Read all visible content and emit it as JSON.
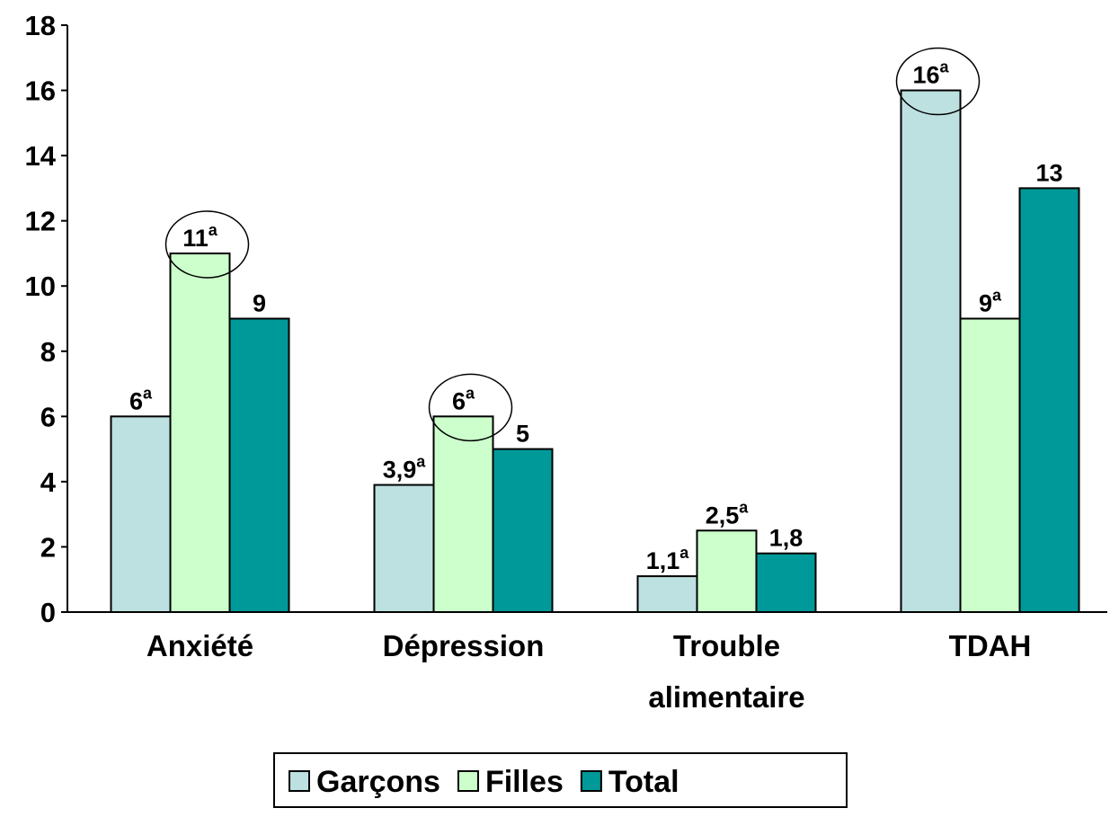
{
  "chart_data": {
    "type": "bar",
    "categories": [
      "Anxiété",
      "Dépression",
      "Trouble alimentaire",
      "TDAH"
    ],
    "series": [
      {
        "name": "Garçons",
        "color": "#bde0e0",
        "values": [
          6,
          3.9,
          1.1,
          16
        ],
        "value_labels": [
          "6",
          "3,9",
          "1,1",
          "16"
        ],
        "notes": [
          "a",
          "a",
          "a",
          "a"
        ],
        "circled": [
          false,
          false,
          false,
          true
        ]
      },
      {
        "name": "Filles",
        "color": "#ccffcc",
        "values": [
          11,
          6,
          2.5,
          9
        ],
        "value_labels": [
          "11",
          "6",
          "2,5",
          "9"
        ],
        "notes": [
          "a",
          "a",
          "a",
          "a"
        ],
        "circled": [
          true,
          true,
          false,
          false
        ]
      },
      {
        "name": "Total",
        "color": "#009999",
        "values": [
          9,
          5,
          1.8,
          13
        ],
        "value_labels": [
          "9",
          "5",
          "1,8",
          "13"
        ],
        "notes": [
          null,
          null,
          null,
          null
        ],
        "circled": [
          false,
          false,
          false,
          false
        ]
      }
    ],
    "ylim": [
      0,
      18
    ],
    "yticks": [
      0,
      2,
      4,
      6,
      8,
      10,
      12,
      14,
      16,
      18
    ],
    "grid": false,
    "legend": "bottom"
  }
}
